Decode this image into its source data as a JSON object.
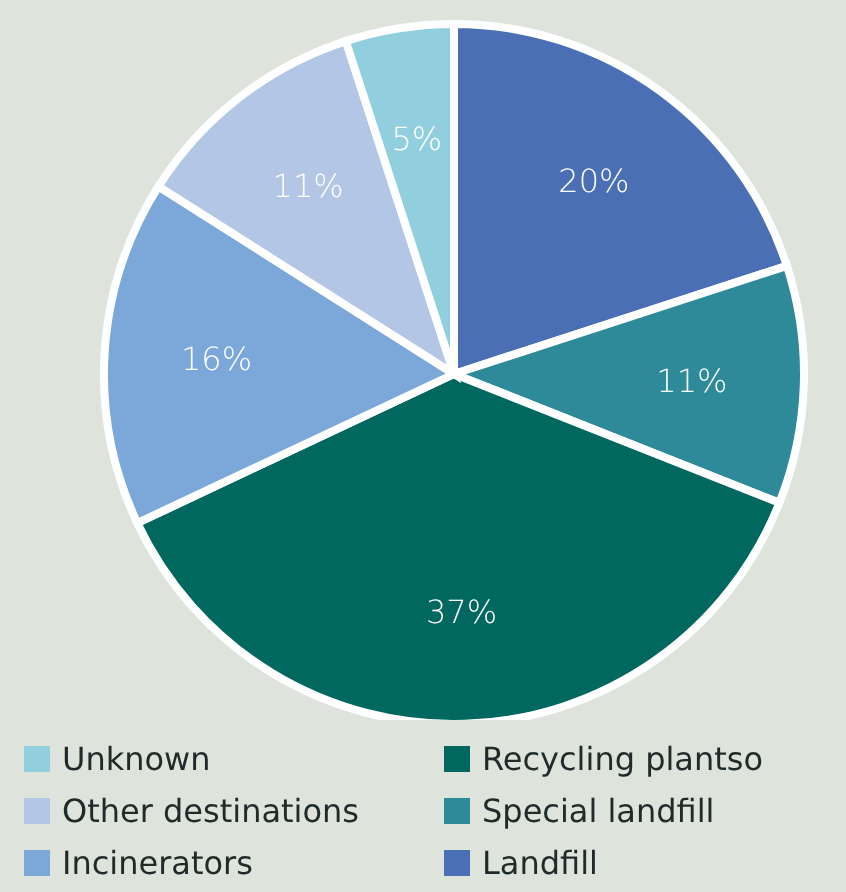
{
  "chart_data": {
    "type": "pie",
    "categories": [
      "Landfill",
      "Special landfill",
      "Recycling plantso",
      "Incinerators",
      "Other destinations",
      "Unknown"
    ],
    "values": [
      20,
      11,
      37,
      16,
      11,
      5
    ],
    "value_labels": [
      "20%",
      "11%",
      "37%",
      "16%",
      "11%",
      "5%"
    ],
    "colors": [
      "#4a6fb5",
      "#2e8a98",
      "#00685f",
      "#7ba7d9",
      "#b3c6e5",
      "#91cfdf"
    ],
    "legend": "bottom"
  }
}
